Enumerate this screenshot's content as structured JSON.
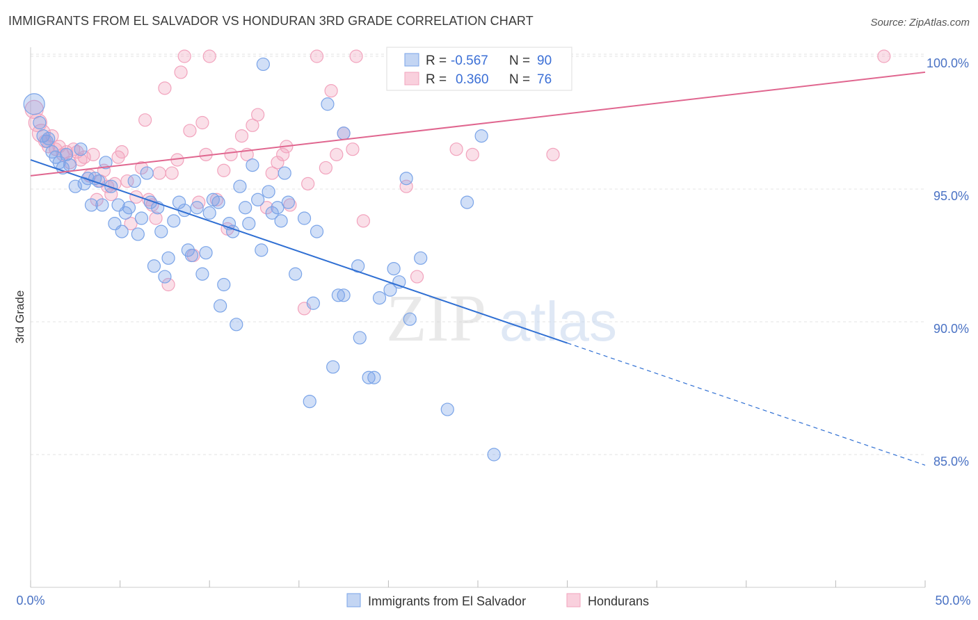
{
  "header": {
    "title": "IMMIGRANTS FROM EL SALVADOR VS HONDURAN 3RD GRADE CORRELATION CHART",
    "source": "Source: ZipAtlas.com"
  },
  "watermark": {
    "zip": "ZIP",
    "atlas": "atlas"
  },
  "chart_data": {
    "type": "scatter",
    "title": "IMMIGRANTS FROM EL SALVADOR VS HONDURAN 3RD GRADE CORRELATION CHART",
    "xlabel": "",
    "ylabel": "3rd Grade",
    "xlim": [
      0,
      50
    ],
    "ylim": [
      80.3,
      100.7
    ],
    "x_tick_labels": [
      "0.0%",
      "50.0%"
    ],
    "y_ticks": [
      85,
      90,
      95,
      100
    ],
    "y_tick_labels": [
      "85.0%",
      "90.0%",
      "95.0%",
      "100.0%"
    ],
    "grid": true,
    "legend_position": "top-center",
    "colors": {
      "blue": "#7aa4e8",
      "blue_line": "#2f6fd3",
      "pink": "#f2a3bd",
      "pink_line": "#e0668f",
      "axis_text": "#4a72c4"
    },
    "stats": [
      {
        "r_label": "R =",
        "r": "-0.567",
        "n_label": "N =",
        "n": "90"
      },
      {
        "r_label": "R =",
        "r": "0.360",
        "n_label": "N =",
        "n": "76"
      }
    ],
    "series": [
      {
        "name": "Immigrants from El Salvador",
        "color": "#7aa4e8",
        "trend": {
          "x": [
            0,
            30
          ],
          "y": [
            96.1,
            89.2
          ],
          "dashed_to": [
            50,
            84.6
          ]
        },
        "points": [
          [
            0.2,
            98.2
          ],
          [
            0.5,
            97.5
          ],
          [
            0.7,
            97.0
          ],
          [
            0.9,
            96.8
          ],
          [
            1.0,
            96.9
          ],
          [
            1.2,
            96.4
          ],
          [
            1.4,
            96.2
          ],
          [
            1.6,
            96.0
          ],
          [
            1.8,
            95.8
          ],
          [
            2.0,
            96.3
          ],
          [
            2.2,
            95.9
          ],
          [
            2.5,
            95.1
          ],
          [
            2.8,
            96.5
          ],
          [
            3.0,
            95.2
          ],
          [
            3.2,
            95.4
          ],
          [
            3.4,
            94.4
          ],
          [
            3.6,
            95.4
          ],
          [
            3.8,
            95.3
          ],
          [
            4.0,
            94.4
          ],
          [
            4.2,
            96.0
          ],
          [
            4.5,
            95.1
          ],
          [
            4.7,
            93.7
          ],
          [
            4.9,
            94.4
          ],
          [
            5.1,
            93.4
          ],
          [
            5.3,
            94.1
          ],
          [
            5.5,
            94.3
          ],
          [
            5.8,
            95.3
          ],
          [
            6.0,
            93.3
          ],
          [
            6.2,
            93.9
          ],
          [
            6.5,
            95.6
          ],
          [
            6.7,
            94.5
          ],
          [
            6.9,
            92.1
          ],
          [
            7.1,
            94.3
          ],
          [
            7.3,
            93.4
          ],
          [
            7.5,
            91.7
          ],
          [
            7.7,
            92.4
          ],
          [
            8.0,
            93.8
          ],
          [
            8.3,
            94.5
          ],
          [
            8.6,
            94.2
          ],
          [
            8.8,
            92.7
          ],
          [
            9.0,
            92.5
          ],
          [
            9.3,
            94.3
          ],
          [
            9.6,
            91.8
          ],
          [
            9.8,
            92.6
          ],
          [
            10.0,
            94.1
          ],
          [
            10.2,
            94.6
          ],
          [
            10.5,
            94.5
          ],
          [
            10.6,
            90.6
          ],
          [
            10.8,
            91.4
          ],
          [
            11.1,
            93.7
          ],
          [
            11.3,
            93.4
          ],
          [
            11.5,
            89.9
          ],
          [
            11.7,
            95.1
          ],
          [
            12.0,
            94.3
          ],
          [
            12.2,
            93.7
          ],
          [
            12.4,
            95.9
          ],
          [
            12.7,
            94.6
          ],
          [
            12.9,
            92.7
          ],
          [
            13.0,
            99.7
          ],
          [
            13.3,
            94.9
          ],
          [
            13.5,
            94.1
          ],
          [
            13.8,
            94.3
          ],
          [
            14.0,
            93.8
          ],
          [
            14.2,
            95.6
          ],
          [
            14.4,
            94.5
          ],
          [
            14.8,
            91.8
          ],
          [
            15.3,
            93.9
          ],
          [
            15.6,
            87.0
          ],
          [
            15.8,
            90.7
          ],
          [
            16.0,
            93.4
          ],
          [
            16.6,
            98.2
          ],
          [
            16.9,
            88.3
          ],
          [
            17.2,
            91.0
          ],
          [
            17.5,
            97.1
          ],
          [
            17.5,
            91.0
          ],
          [
            18.3,
            92.1
          ],
          [
            18.4,
            89.4
          ],
          [
            18.9,
            87.9
          ],
          [
            19.2,
            87.9
          ],
          [
            19.5,
            90.9
          ],
          [
            20.1,
            91.2
          ],
          [
            20.3,
            92.0
          ],
          [
            20.6,
            91.5
          ],
          [
            21.0,
            95.4
          ],
          [
            21.2,
            90.1
          ],
          [
            21.8,
            92.4
          ],
          [
            23.3,
            86.7
          ],
          [
            24.4,
            94.5
          ],
          [
            25.2,
            97.0
          ],
          [
            25.9,
            85.0
          ]
        ]
      },
      {
        "name": "Hondurans",
        "color": "#f2a3bd",
        "trend": {
          "x": [
            0,
            50
          ],
          "y": [
            95.5,
            99.4
          ]
        },
        "points": [
          [
            0.2,
            98.0
          ],
          [
            0.4,
            97.5
          ],
          [
            0.6,
            97.1
          ],
          [
            0.8,
            96.8
          ],
          [
            1.0,
            96.6
          ],
          [
            1.2,
            97.0
          ],
          [
            1.4,
            96.5
          ],
          [
            1.6,
            96.6
          ],
          [
            1.8,
            96.3
          ],
          [
            2.0,
            96.4
          ],
          [
            2.2,
            96.0
          ],
          [
            2.4,
            96.5
          ],
          [
            2.6,
            96.4
          ],
          [
            2.8,
            96.1
          ],
          [
            3.0,
            96.2
          ],
          [
            3.3,
            95.5
          ],
          [
            3.5,
            96.3
          ],
          [
            3.7,
            94.6
          ],
          [
            3.9,
            95.3
          ],
          [
            4.1,
            95.7
          ],
          [
            4.3,
            95.1
          ],
          [
            4.5,
            94.8
          ],
          [
            4.7,
            95.2
          ],
          [
            4.9,
            96.2
          ],
          [
            5.1,
            96.4
          ],
          [
            5.4,
            95.3
          ],
          [
            5.6,
            93.7
          ],
          [
            5.9,
            94.7
          ],
          [
            6.2,
            95.8
          ],
          [
            6.4,
            97.6
          ],
          [
            6.6,
            94.6
          ],
          [
            6.8,
            94.4
          ],
          [
            7.0,
            93.9
          ],
          [
            7.2,
            95.6
          ],
          [
            7.5,
            98.8
          ],
          [
            7.7,
            91.4
          ],
          [
            7.9,
            95.6
          ],
          [
            8.2,
            96.1
          ],
          [
            8.4,
            99.4
          ],
          [
            8.6,
            100.0
          ],
          [
            8.9,
            97.2
          ],
          [
            9.1,
            92.5
          ],
          [
            9.4,
            94.5
          ],
          [
            9.6,
            97.5
          ],
          [
            9.8,
            96.3
          ],
          [
            10.0,
            100.0
          ],
          [
            10.4,
            94.6
          ],
          [
            10.8,
            95.7
          ],
          [
            11.0,
            93.5
          ],
          [
            11.2,
            96.3
          ],
          [
            11.8,
            97.0
          ],
          [
            12.1,
            96.3
          ],
          [
            12.4,
            97.4
          ],
          [
            12.7,
            97.8
          ],
          [
            13.2,
            94.3
          ],
          [
            13.5,
            95.6
          ],
          [
            13.8,
            96.0
          ],
          [
            14.1,
            96.3
          ],
          [
            14.3,
            96.6
          ],
          [
            14.5,
            94.4
          ],
          [
            15.3,
            90.5
          ],
          [
            15.5,
            95.2
          ],
          [
            16.0,
            100.0
          ],
          [
            16.5,
            95.8
          ],
          [
            16.8,
            98.7
          ],
          [
            17.1,
            96.3
          ],
          [
            17.5,
            97.1
          ],
          [
            18.0,
            96.5
          ],
          [
            18.2,
            100.0
          ],
          [
            18.6,
            93.8
          ],
          [
            21.0,
            95.1
          ],
          [
            21.6,
            91.7
          ],
          [
            23.8,
            96.5
          ],
          [
            24.7,
            96.3
          ],
          [
            29.2,
            96.3
          ],
          [
            47.7,
            100.0
          ]
        ]
      }
    ]
  },
  "legend_bottom": [
    {
      "label": "Immigrants from El Salvador"
    },
    {
      "label": "Hondurans"
    }
  ]
}
